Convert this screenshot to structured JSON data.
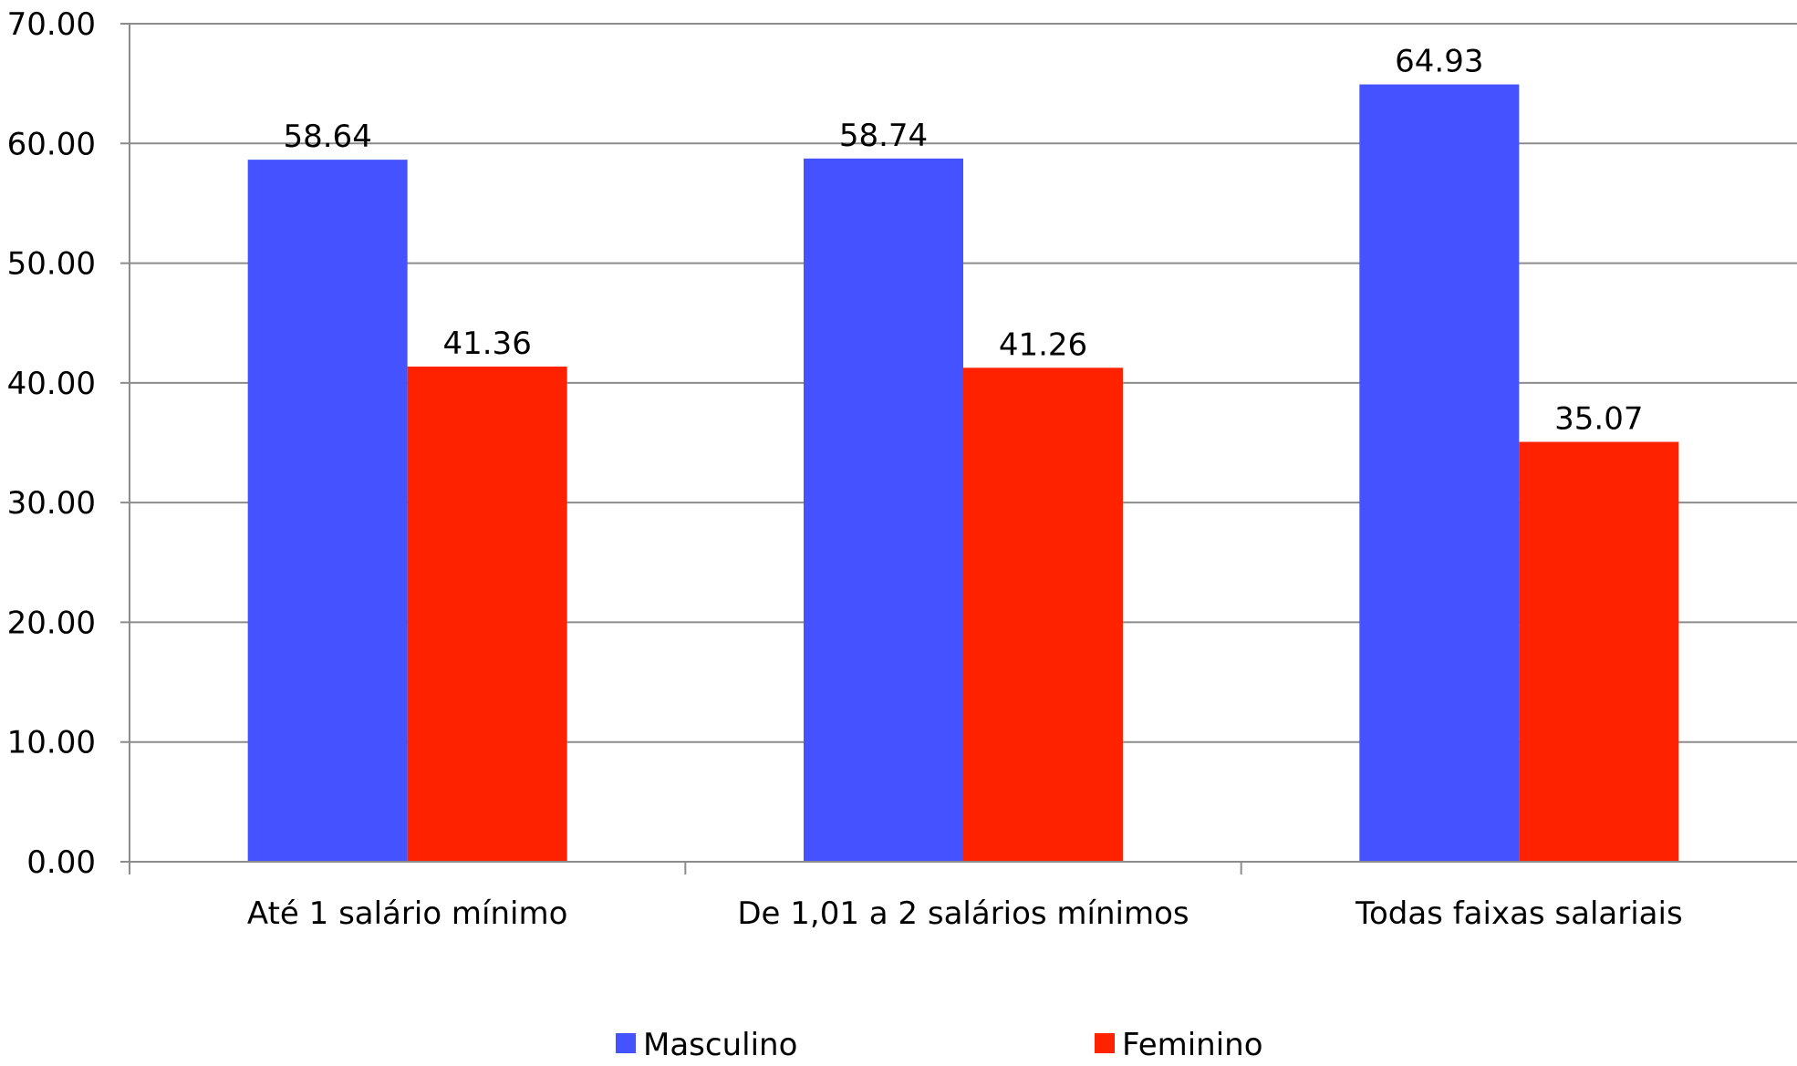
{
  "chart_data": {
    "type": "bar",
    "categories": [
      "Até 1 salário mínimo",
      "De 1,01 a 2 salários mínimos",
      "Todas faixas salariais"
    ],
    "series": [
      {
        "name": "Masculino",
        "values": [
          58.64,
          58.74,
          64.93
        ],
        "color": "#4453FF"
      },
      {
        "name": "Feminino",
        "values": [
          41.36,
          41.26,
          35.07
        ],
        "color": "#FF2200"
      }
    ],
    "data_labels": {
      "Masculino": [
        "58.64",
        "58.74",
        "64.93"
      ],
      "Feminino": [
        "41.36",
        "41.26",
        "35.07"
      ]
    },
    "y_ticks": [
      "0.00",
      "10.00",
      "20.00",
      "30.00",
      "40.00",
      "50.00",
      "60.00",
      "70.00"
    ],
    "ylim": [
      0,
      70
    ],
    "title": "",
    "xlabel": "",
    "ylabel": "",
    "grid": true,
    "gridline_color": "#8C8C8C",
    "legend_position": "bottom"
  }
}
